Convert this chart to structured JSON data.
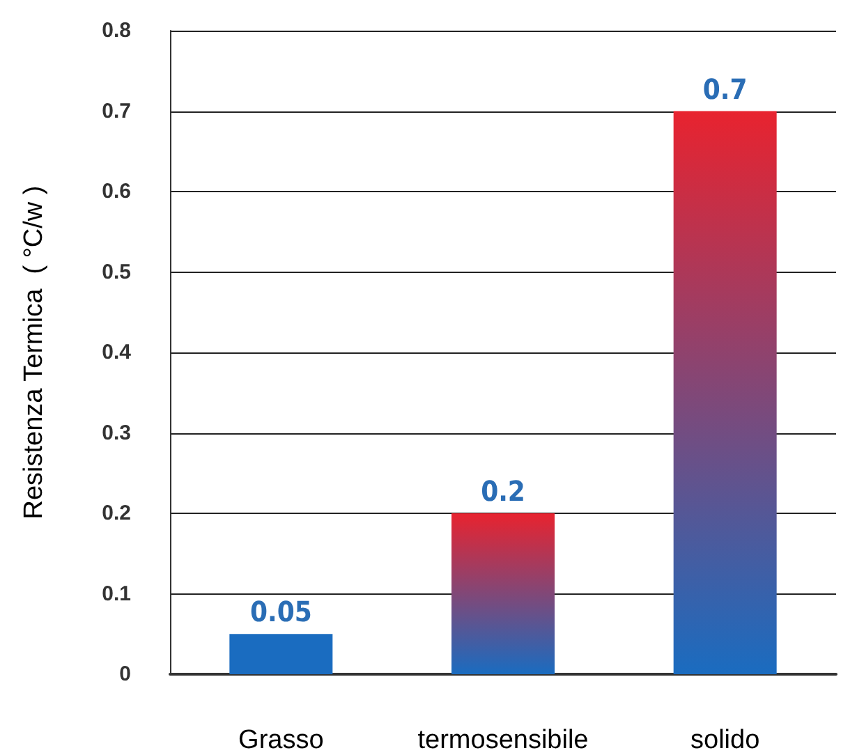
{
  "chart_data": {
    "type": "bar",
    "ylabel": "Resistenza Termica  ( °C/w )",
    "categories": [
      "Grasso",
      "termosensibile",
      "solido"
    ],
    "values": [
      0.05,
      0.2,
      0.7
    ],
    "colors": [
      "#1a6cc0",
      "#e8232f",
      "#e8232f"
    ],
    "ylim": [
      0,
      0.8
    ],
    "yticks": [
      0,
      0.1,
      0.2,
      0.3,
      0.4,
      0.5,
      0.6,
      0.7,
      0.8
    ],
    "grid": "y",
    "data_labels": true
  }
}
